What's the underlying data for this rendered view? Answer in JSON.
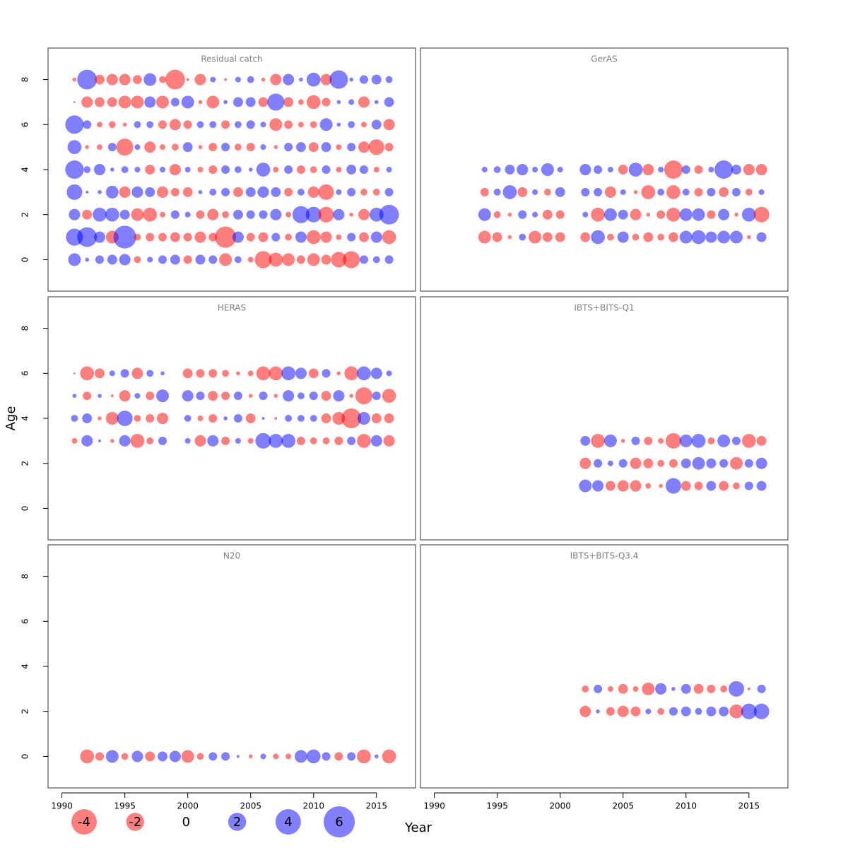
{
  "chart_data": {
    "type": "bubble",
    "xlabel": "Year",
    "ylabel": "Age",
    "xlim": [
      1988.9,
      2018.1
    ],
    "xticks": [
      1990,
      1995,
      2000,
      2005,
      2010,
      2015
    ],
    "ylim": [
      -1.4,
      9.4
    ],
    "yticks": [
      0,
      2,
      4,
      6,
      8
    ],
    "positive_color": "#0000ff",
    "negative_color": "#ff0000",
    "legend": {
      "values": [
        -4,
        -2,
        0,
        2,
        4,
        6
      ]
    },
    "panels": [
      {
        "title": "Residual catch",
        "years": [
          1991,
          1992,
          1993,
          1994,
          1995,
          1996,
          1997,
          1998,
          1999,
          2000,
          2001,
          2002,
          2003,
          2004,
          2005,
          2006,
          2007,
          2008,
          2009,
          2010,
          2011,
          2012,
          2013,
          2014,
          2015,
          2016
        ],
        "ages": [
          0,
          1,
          2,
          3,
          4,
          5,
          6,
          7,
          8
        ],
        "values": [
          [
            1.0,
            0.1,
            0.45,
            0.6,
            0.8,
            -0.3,
            0.2,
            0.45,
            0.6,
            -0.45,
            0.6,
            0.45,
            -1.0,
            0.3,
            -0.2,
            -1.8,
            -1.2,
            -1.0,
            -0.45,
            -1.0,
            -0.6,
            -1.5,
            -1.8,
            0.45,
            0.3,
            0.45
          ],
          [
            1.8,
            2.4,
            0.8,
            -1.0,
            3.2,
            -0.3,
            -0.45,
            -0.45,
            -0.6,
            -0.45,
            -0.8,
            -0.45,
            -2.8,
            0.8,
            -0.45,
            -0.6,
            0.45,
            -0.3,
            0.8,
            -1.2,
            -0.8,
            -0.2,
            0.45,
            -0.6,
            0.8,
            -1.2
          ],
          [
            0.8,
            -0.6,
            1.2,
            1.2,
            0.6,
            -1.0,
            -1.2,
            -0.2,
            0.45,
            0.2,
            -0.45,
            -0.8,
            -0.3,
            0.6,
            0.45,
            0.45,
            0.8,
            -0.2,
            1.8,
            1.5,
            -1.5,
            0.8,
            -0.1,
            -0.8,
            1.2,
            2.4
          ],
          [
            1.5,
            0.05,
            0.1,
            1.0,
            -0.8,
            0.8,
            0.6,
            -0.8,
            -0.45,
            -0.6,
            0.1,
            0.3,
            0.45,
            -0.6,
            0.6,
            0.8,
            0.6,
            -0.45,
            0.3,
            -0.8,
            -1.5,
            0.2,
            0.45,
            -0.3,
            -0.3,
            0.45
          ],
          [
            2.1,
            0.3,
            0.8,
            0.1,
            0.3,
            0.2,
            -0.6,
            0.2,
            -0.8,
            0.2,
            -0.2,
            -0.45,
            0.45,
            0.3,
            0.1,
            1.2,
            -0.2,
            0.45,
            -0.45,
            -0.3,
            0.45,
            -0.2,
            0.6,
            0.45,
            -0.2,
            0.2
          ],
          [
            1.2,
            -0.1,
            -0.2,
            0.45,
            -1.8,
            0.2,
            -0.8,
            -0.2,
            -0.3,
            0.6,
            -0.1,
            -0.45,
            0.45,
            -0.3,
            -0.45,
            0.2,
            -0.1,
            0.45,
            0.6,
            -0.6,
            0.6,
            -0.2,
            0.45,
            -0.8,
            -1.5,
            -0.45
          ],
          [
            2.1,
            0.45,
            -0.2,
            -0.3,
            -0.1,
            0.3,
            0.3,
            -0.45,
            -0.8,
            -0.45,
            0.3,
            0.3,
            -0.45,
            0.3,
            0.45,
            0.2,
            -1.0,
            -0.45,
            -0.2,
            -0.3,
            1.0,
            0.1,
            0.3,
            -0.2,
            0.6,
            -0.8
          ],
          [
            0.02,
            -0.8,
            -0.6,
            -0.6,
            -1.0,
            -1.0,
            0.8,
            -1.0,
            0.45,
            1.0,
            -0.1,
            -1.0,
            0.1,
            0.6,
            0.6,
            -0.6,
            1.8,
            -0.6,
            -0.2,
            -1.2,
            -0.45,
            0.1,
            0.2,
            -0.8,
            0.1,
            0.6
          ],
          [
            -0.1,
            2.4,
            -0.6,
            -0.8,
            -0.8,
            -0.5,
            1.0,
            -0.3,
            -2.4,
            -0.05,
            -0.8,
            0.2,
            -0.05,
            0.2,
            0.3,
            -0.1,
            -0.8,
            0.8,
            0.1,
            1.2,
            -0.8,
            2.1,
            0.1,
            0.45,
            0.6,
            0.3
          ]
        ]
      },
      {
        "title": "GerAS",
        "years": [
          1994,
          1995,
          1996,
          1997,
          1998,
          1999,
          2000,
          2002,
          2003,
          2004,
          2005,
          2006,
          2007,
          2008,
          2009,
          2010,
          2011,
          2012,
          2013,
          2014,
          2015,
          2016
        ],
        "ages": [
          1,
          2,
          3,
          4
        ],
        "values": [
          [
            -1.0,
            -0.6,
            -0.1,
            0.3,
            -1.0,
            -0.6,
            -0.6,
            -0.6,
            1.2,
            -0.3,
            0.8,
            -0.3,
            -0.6,
            -0.3,
            -0.6,
            1.0,
            1.2,
            0.8,
            1.0,
            1.0,
            -0.1,
            0.6
          ],
          [
            1.0,
            -0.3,
            -0.1,
            0.45,
            0.2,
            -0.6,
            -0.45,
            0.2,
            -1.2,
            1.0,
            0.6,
            -0.8,
            -0.1,
            -0.45,
            -1.2,
            1.0,
            1.0,
            -0.45,
            0.8,
            -0.1,
            1.2,
            -1.5
          ],
          [
            -0.45,
            0.3,
            1.2,
            -0.6,
            0.2,
            -0.3,
            0.6,
            0.45,
            0.45,
            -0.8,
            0.2,
            -0.1,
            -1.2,
            0.3,
            -1.2,
            0.3,
            -0.45,
            0.45,
            -0.6,
            0.45,
            -0.3,
            0.2
          ],
          [
            0.2,
            0.3,
            0.6,
            0.8,
            0.2,
            1.0,
            0.2,
            0.8,
            0.45,
            0.2,
            -0.6,
            1.2,
            -0.8,
            0.2,
            -2.1,
            0.45,
            -0.45,
            0.2,
            2.1,
            0.6,
            -0.8,
            -0.8
          ]
        ]
      },
      {
        "title": "HERAS",
        "years": [
          1991,
          1992,
          1993,
          1994,
          1995,
          1996,
          1997,
          1998,
          2000,
          2001,
          2002,
          2003,
          2004,
          2005,
          2006,
          2007,
          2008,
          2009,
          2010,
          2011,
          2012,
          2013,
          2014,
          2015,
          2016
        ],
        "ages": [
          3,
          4,
          5,
          6
        ],
        "values": [
          [
            -0.2,
            0.8,
            0.05,
            -0.1,
            0.8,
            -1.2,
            -0.3,
            0.45,
            0.2,
            -0.8,
            0.8,
            -0.45,
            0.2,
            -0.2,
            1.5,
            1.2,
            1.2,
            -0.45,
            -0.3,
            -0.3,
            -0.45,
            0.45,
            -1.2,
            0.8,
            -0.8
          ],
          [
            0.3,
            0.6,
            -0.1,
            -1.0,
            1.5,
            -0.3,
            -0.45,
            -0.8,
            0.3,
            -0.2,
            -0.45,
            0.1,
            0.45,
            -0.6,
            0.05,
            -0.05,
            0.3,
            0.3,
            0.3,
            -0.6,
            -1.0,
            -2.4,
            1.0,
            -0.6,
            -0.6
          ],
          [
            0.1,
            -0.45,
            0.1,
            -0.05,
            -0.8,
            0.2,
            -0.45,
            1.0,
            0.8,
            0.45,
            -0.6,
            -0.45,
            0.45,
            -0.1,
            0.45,
            -0.1,
            0.8,
            0.3,
            0.45,
            -0.6,
            0.8,
            -0.1,
            -1.8,
            0.45,
            -1.2
          ],
          [
            0.02,
            -1.2,
            -0.6,
            0.2,
            0.45,
            -0.8,
            0.3,
            0.1,
            -0.6,
            -0.45,
            -0.45,
            -0.3,
            -0.1,
            -0.2,
            -1.2,
            -1.2,
            1.2,
            0.8,
            -0.6,
            0.45,
            -0.1,
            -1.2,
            1.2,
            0.8,
            0.2
          ]
        ]
      },
      {
        "title": "IBTS+BITS-Q1",
        "years": [
          2002,
          2003,
          2004,
          2005,
          2006,
          2007,
          2008,
          2009,
          2010,
          2011,
          2012,
          2013,
          2014,
          2015,
          2016
        ],
        "ages": [
          1,
          2,
          3
        ],
        "values": [
          [
            1.0,
            0.8,
            -0.6,
            -0.8,
            -0.8,
            -0.2,
            -0.1,
            1.5,
            -0.6,
            -0.45,
            0.6,
            -0.6,
            -0.3,
            0.45,
            0.6
          ],
          [
            -0.8,
            0.45,
            0.2,
            0.45,
            -0.8,
            -0.6,
            -0.3,
            -0.45,
            0.6,
            1.0,
            0.6,
            0.45,
            -1.0,
            0.45,
            0.8
          ],
          [
            0.6,
            -1.2,
            1.0,
            -0.1,
            0.45,
            -0.45,
            -0.2,
            -1.5,
            1.0,
            1.2,
            -0.3,
            1.0,
            0.45,
            -1.2,
            -0.6
          ]
        ]
      },
      {
        "title": "N20",
        "years": [
          1992,
          1993,
          1994,
          1995,
          1996,
          1997,
          1998,
          1999,
          2000,
          2001,
          2002,
          2003,
          2004,
          2005,
          2006,
          2007,
          2008,
          2009,
          2010,
          2011,
          2012,
          2013,
          2014,
          2015,
          2016
        ],
        "ages": [
          0
        ],
        "values": [
          [
            -1.2,
            -0.45,
            1.0,
            -0.3,
            0.8,
            -0.6,
            0.6,
            0.8,
            -1.0,
            -0.3,
            0.45,
            0.45,
            0.05,
            -0.1,
            0.2,
            -0.2,
            -0.2,
            1.0,
            1.2,
            0.45,
            -0.45,
            0.45,
            -1.2,
            0.1,
            -1.2
          ]
        ]
      },
      {
        "title": "IBTS+BITS-Q3.4",
        "years": [
          2002,
          2003,
          2004,
          2005,
          2006,
          2007,
          2008,
          2009,
          2010,
          2011,
          2012,
          2013,
          2014,
          2015,
          2016
        ],
        "ages": [
          2,
          3
        ],
        "values": [
          [
            -0.8,
            0.1,
            -0.45,
            -0.8,
            -0.6,
            0.2,
            -0.3,
            0.45,
            0.6,
            0.3,
            0.6,
            0.6,
            -1.2,
            1.5,
            1.5
          ],
          [
            -0.3,
            0.45,
            -0.2,
            -0.6,
            -0.2,
            -1.0,
            0.8,
            0.1,
            0.6,
            -0.6,
            -0.45,
            -0.3,
            1.5,
            -0.05,
            0.45
          ]
        ]
      }
    ]
  }
}
